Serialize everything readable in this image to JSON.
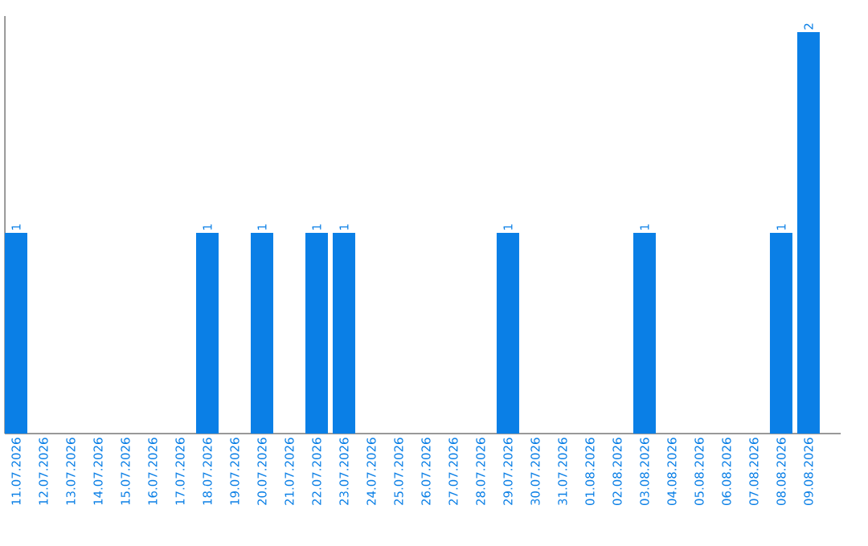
{
  "chart_data": {
    "type": "bar",
    "categories": [
      "11.07.2026",
      "12.07.2026",
      "13.07.2026",
      "14.07.2026",
      "15.07.2026",
      "16.07.2026",
      "17.07.2026",
      "18.07.2026",
      "19.07.2026",
      "20.07.2026",
      "21.07.2026",
      "22.07.2026",
      "23.07.2026",
      "24.07.2026",
      "25.07.2026",
      "26.07.2026",
      "27.07.2026",
      "28.07.2026",
      "29.07.2026",
      "30.07.2026",
      "31.07.2026",
      "01.08.2026",
      "02.08.2026",
      "03.08.2026",
      "04.08.2026",
      "05.08.2026",
      "06.08.2026",
      "07.08.2026",
      "08.08.2026",
      "09.08.2026"
    ],
    "values": [
      1,
      0,
      0,
      0,
      0,
      0,
      0,
      1,
      0,
      1,
      0,
      1,
      1,
      0,
      0,
      0,
      0,
      0,
      1,
      0,
      0,
      0,
      0,
      1,
      0,
      0,
      0,
      0,
      1,
      2
    ],
    "value_labels": [
      "1",
      null,
      null,
      null,
      null,
      null,
      null,
      "1",
      null,
      "1",
      null,
      "1",
      "1",
      null,
      null,
      null,
      null,
      null,
      "1",
      null,
      null,
      null,
      null,
      "1",
      null,
      null,
      null,
      null,
      "1",
      "2"
    ],
    "color": "#0a7fe6"
  }
}
